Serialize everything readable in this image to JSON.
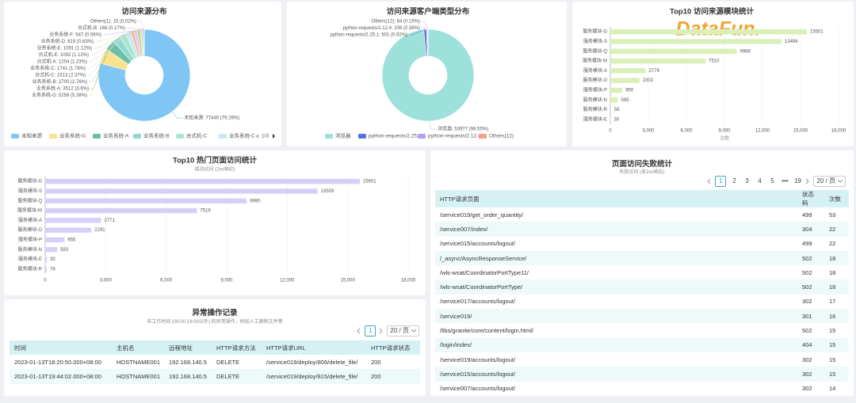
{
  "chart_data": [
    {
      "type": "pie",
      "title": "访问来源分布",
      "categories": [
        "未知来源",
        "业务系统-G",
        "业务系统-A",
        "业务系统-B",
        "台式机-C",
        "业务系统-C",
        "台式机-A",
        "台式机-E",
        "业务系统-E",
        "业务系统-D",
        "业务系统-F",
        "台式机-B",
        "Others(1)"
      ],
      "values": [
        77440,
        5256,
        3512,
        2700,
        2313,
        1741,
        1204,
        1092,
        1091,
        619,
        547,
        168,
        15
      ],
      "value_labels": [
        "未知来源: 77440 (79.26%)",
        "业务系统-G: 5256 (5.38%)",
        "业务系统-A: 3512 (3.6%)",
        "业务系统-B: 2700 (2.76%)",
        "台式机-C: 2313 (2.37%)",
        "业务系统-C: 1741 (1.78%)",
        "台式机-A: 1204 (1.23%)",
        "台式机-E: 1092 (1.12%)",
        "业务系统-E: 1091 (1.12%)",
        "业务系统-D: 619 (0.63%)",
        "业务系统-F: 547 (0.56%)",
        "台式机-B: 168 (0.17%)",
        "Others(1): 15 (0.02%)"
      ],
      "colors": [
        "#80c6f5",
        "#fbe28c",
        "#6cbfa6",
        "#93d8d2",
        "#a9e6cd",
        "#c5e9f1",
        "#f5b7a0",
        "#d8c8f3",
        "#b6d98e",
        "#f7d8a8",
        "#9fb8f0",
        "#e8a8c8",
        "#c9c9c9"
      ],
      "legend_pager": "1/3"
    },
    {
      "type": "pie",
      "title": "访问来源客户端类型分布",
      "categories": [
        "浏览器",
        "python-requests/2.25.1",
        "python-requests/2.12.4",
        "Others(12)"
      ],
      "values": [
        53977,
        501,
        208,
        84
      ],
      "value_labels": [
        "浏览器: 53977 (98.55%)",
        "python-requests/2.25.1: 501 (0.92%)",
        "python-requests/2.12.4: 208 (0.38%)",
        "Others(12): 84 (0.15%)"
      ],
      "colors": [
        "#9ee0da",
        "#5b6ee1",
        "#b79ef2",
        "#f4a28c"
      ]
    },
    {
      "type": "hbar",
      "title": "Top10 访问来源模块统计",
      "xlabel": "次数",
      "color": "#d9f0b9",
      "categories": [
        "服务模块-G",
        "服务模块-S",
        "服务模块-Q",
        "服务模块-M",
        "服务模块-A",
        "服务模块-O",
        "服务模块-P",
        "服务模块-N",
        "服务模块-R",
        "服务模块-E"
      ],
      "values": [
        15501,
        13494,
        9968,
        7510,
        2779,
        2302,
        950,
        595,
        58,
        30
      ],
      "xlim": [
        0,
        18000
      ],
      "xticks": [
        0,
        {
          "value": 3000,
          "label": "3,000"
        },
        {
          "value": 6000,
          "label": "6,000"
        },
        {
          "value": 9000,
          "label": "9,000"
        },
        {
          "value": 12000,
          "label": "12,000"
        },
        {
          "value": 15000,
          "label": "15,000"
        },
        {
          "value": 18000,
          "label": "18,000"
        }
      ],
      "grid": true
    },
    {
      "type": "hbar",
      "title": "Top10 热门页面访问统计",
      "subtitle": "成功访问 (2xx响应)",
      "color": "#d7cff8",
      "categories": [
        "服务模块-G",
        "服务模块-S",
        "服务模块-Q",
        "服务模块-M",
        "服务模块-A",
        "服务模块-O",
        "服务模块-P",
        "服务模块-N",
        "服务模块-E",
        "服务模块-R"
      ],
      "values": [
        15601,
        13509,
        9990,
        7519,
        2771,
        2291,
        955,
        593,
        92,
        78
      ],
      "xlim": [
        0,
        18000
      ],
      "xticks": [
        0,
        {
          "value": 3000,
          "label": "3,000"
        },
        {
          "value": 6000,
          "label": "6,000"
        },
        {
          "value": 9000,
          "label": "9,000"
        },
        {
          "value": 12000,
          "label": "12,000"
        },
        {
          "value": 15000,
          "label": "15,000"
        },
        {
          "value": 18000,
          "label": "18,000"
        }
      ],
      "grid": true
    }
  ],
  "fail_table": {
    "title": "页面访问失败统计",
    "subtitle": "失败访问 (非2xx响应)",
    "pages": [
      "1",
      "2",
      "3",
      "4",
      "5",
      "•••",
      "19"
    ],
    "page_size": "20 / 页",
    "header": [
      "HTTP请求页面",
      "状态码",
      "次数"
    ],
    "rows": [
      [
        "/service019/get_order_quantity/",
        "499",
        "53"
      ],
      [
        "/service007/index/",
        "304",
        "22"
      ],
      [
        "/service015/accounts/logout/",
        "499",
        "22"
      ],
      [
        "/_async/AsyncResponseService/",
        "502",
        "18"
      ],
      [
        "/wls-wsat/CoordinatorPortType11/",
        "502",
        "18"
      ],
      [
        "/wls-wsat/CoordinatorPortType/",
        "502",
        "18"
      ],
      [
        "/service017/accounts/logout/",
        "302",
        "17"
      ],
      [
        "/service019/",
        "301",
        "16"
      ],
      [
        "/libs/granite/core/content/login.html/",
        "502",
        "15"
      ],
      [
        "/login/index/",
        "404",
        "15"
      ],
      [
        "/service019/accounts/logout/",
        "302",
        "15"
      ],
      [
        "/service015/accounts/logout/",
        "302",
        "15"
      ],
      [
        "/service007/accounts/logout/",
        "302",
        "14"
      ]
    ]
  },
  "anomaly_table": {
    "title": "异常操作记录",
    "subtitle": "非工作时间 (08:00-18:00以外) 的异常操作，例如人工删除文件等",
    "pages": [
      "1"
    ],
    "page_size": "20 / 页",
    "header": [
      "时间",
      "主机名",
      "远程地址",
      "HTTP请求方法",
      "HTTP请求URL",
      "HTTP请求状态"
    ],
    "rows": [
      [
        "2023-01-13T18:20:50.000+08:00",
        "HOSTNAME001",
        "192.168.140.5",
        "DELETE",
        "/service019/deploy/806/delete_file/",
        "200"
      ],
      [
        "2023-01-13T19:44:02.000+08:00",
        "HOSTNAME001",
        "192.168.140.5",
        "DELETE",
        "/service019/deploy/815/delete_file/",
        "200"
      ]
    ]
  },
  "watermark": "DataFun."
}
